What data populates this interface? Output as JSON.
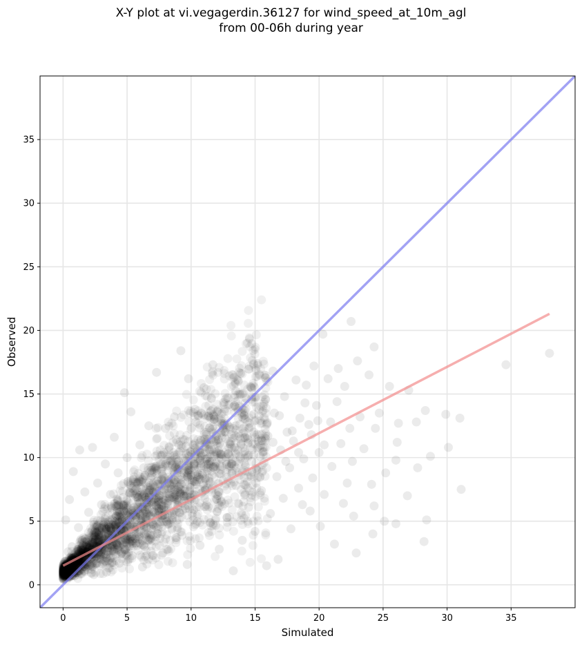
{
  "chart_data": {
    "type": "scatter",
    "title": "X-Y plot at vi.vegagerdin.36127 for wind_speed_at_10m_agl\nfrom 00-06h during year",
    "xlabel": "Simulated",
    "ylabel": "Observed",
    "xlim": [
      -1.8,
      40.0
    ],
    "ylim": [
      -1.8,
      40.0
    ],
    "xticks": [
      0,
      5,
      10,
      15,
      20,
      25,
      30,
      35
    ],
    "yticks": [
      0,
      5,
      10,
      15,
      20,
      25,
      30,
      35
    ],
    "grid": true,
    "colors": {
      "points": "#000000",
      "identity_line": "#7b7bf0",
      "fit_line": "#f28b8b"
    },
    "reference_lines": [
      {
        "kind": "identity",
        "x": [
          -1.8,
          40.0
        ],
        "y": [
          -1.8,
          40.0
        ]
      },
      {
        "kind": "fit",
        "x": [
          0.0,
          38.0
        ],
        "y": [
          1.5,
          21.3
        ]
      }
    ],
    "points": [
      [
        34.6,
        17.3
      ],
      [
        38.0,
        18.2
      ],
      [
        31.1,
        7.5
      ],
      [
        31.0,
        13.1
      ],
      [
        30.1,
        10.8
      ],
      [
        29.9,
        13.4
      ],
      [
        28.7,
        10.1
      ],
      [
        28.4,
        5.1
      ],
      [
        28.2,
        3.4
      ],
      [
        28.3,
        13.7
      ],
      [
        27.6,
        12.8
      ],
      [
        27.7,
        9.2
      ],
      [
        26.9,
        7.0
      ],
      [
        27.0,
        15.3
      ],
      [
        26.1,
        11.2
      ],
      [
        26.0,
        9.8
      ],
      [
        26.0,
        4.8
      ],
      [
        26.2,
        12.7
      ],
      [
        25.5,
        15.6
      ],
      [
        25.2,
        8.8
      ],
      [
        25.1,
        5.0
      ],
      [
        24.7,
        13.5
      ],
      [
        24.4,
        12.3
      ],
      [
        24.3,
        6.2
      ],
      [
        24.2,
        4.0
      ],
      [
        24.1,
        7.9
      ],
      [
        24.3,
        18.7
      ],
      [
        23.9,
        16.5
      ],
      [
        23.5,
        10.7
      ],
      [
        23.2,
        13.2
      ],
      [
        23.0,
        17.6
      ],
      [
        22.9,
        2.5
      ],
      [
        22.7,
        5.4
      ],
      [
        22.6,
        9.7
      ],
      [
        22.5,
        20.7
      ],
      [
        22.4,
        12.3
      ],
      [
        22.2,
        8.0
      ],
      [
        22.0,
        15.6
      ],
      [
        21.9,
        6.4
      ],
      [
        21.7,
        11.1
      ],
      [
        21.5,
        17.0
      ],
      [
        21.4,
        14.4
      ],
      [
        21.2,
        3.2
      ],
      [
        21.0,
        9.3
      ],
      [
        20.9,
        12.8
      ],
      [
        20.7,
        16.2
      ],
      [
        20.4,
        7.1
      ],
      [
        20.3,
        19.7
      ],
      [
        20.1,
        4.6
      ],
      [
        20.0,
        10.4
      ],
      [
        19.8,
        14.1
      ],
      [
        19.6,
        17.2
      ],
      [
        19.5,
        8.4
      ],
      [
        19.3,
        5.8
      ],
      [
        19.2,
        12.6
      ],
      [
        19.0,
        15.7
      ],
      [
        18.8,
        9.9
      ],
      [
        18.7,
        6.3
      ],
      [
        18.5,
        13.1
      ],
      [
        18.4,
        7.6
      ],
      [
        18.2,
        16.1
      ],
      [
        18.0,
        11.3
      ],
      [
        17.8,
        4.4
      ],
      [
        17.7,
        9.2
      ],
      [
        17.5,
        12.0
      ],
      [
        17.3,
        14.8
      ],
      [
        17.2,
        6.8
      ],
      [
        17.0,
        10.6
      ],
      [
        16.8,
        2.0
      ],
      [
        16.7,
        8.5
      ],
      [
        16.5,
        13.5
      ],
      [
        16.4,
        16.8
      ],
      [
        16.2,
        5.6
      ],
      [
        16.0,
        11.7
      ],
      [
        15.9,
        1.5
      ],
      [
        15.7,
        9.6
      ],
      [
        15.5,
        7.4
      ],
      [
        15.4,
        12.9
      ],
      [
        15.2,
        17.4
      ],
      [
        15.0,
        4.2
      ],
      [
        14.9,
        10.2
      ],
      [
        14.7,
        15.5
      ],
      [
        14.5,
        6.1
      ],
      [
        14.4,
        8.9
      ],
      [
        14.2,
        13.7
      ],
      [
        14.0,
        3.5
      ],
      [
        13.9,
        11.1
      ],
      [
        13.7,
        16.0
      ],
      [
        13.5,
        7.8
      ],
      [
        13.3,
        1.1
      ],
      [
        13.2,
        9.5
      ],
      [
        13.0,
        12.4
      ],
      [
        12.8,
        5.3
      ],
      [
        12.7,
        14.6
      ],
      [
        12.5,
        8.2
      ],
      [
        12.3,
        10.9
      ],
      [
        12.2,
        2.8
      ],
      [
        12.0,
        6.7
      ],
      [
        11.8,
        13.0
      ],
      [
        11.7,
        17.3
      ],
      [
        11.5,
        4.9
      ],
      [
        11.3,
        9.0
      ],
      [
        11.2,
        11.8
      ],
      [
        11.0,
        15.5
      ],
      [
        10.8,
        7.2
      ],
      [
        10.7,
        3.1
      ],
      [
        10.5,
        10.5
      ],
      [
        10.3,
        13.8
      ],
      [
        10.2,
        5.9
      ],
      [
        10.0,
        8.6
      ],
      [
        9.8,
        16.2
      ],
      [
        9.7,
        1.6
      ],
      [
        9.5,
        11.4
      ],
      [
        9.3,
        6.4
      ],
      [
        9.2,
        18.4
      ],
      [
        9.0,
        9.7
      ],
      [
        8.8,
        3.7
      ],
      [
        8.7,
        13.2
      ],
      [
        8.5,
        7.5
      ],
      [
        8.3,
        10.8
      ],
      [
        8.2,
        4.8
      ],
      [
        8.0,
        12.3
      ],
      [
        7.8,
        2.5
      ],
      [
        7.7,
        8.9
      ],
      [
        7.5,
        6.0
      ],
      [
        7.3,
        16.7
      ],
      [
        7.2,
        10.1
      ],
      [
        7.0,
        3.9
      ],
      [
        6.8,
        7.8
      ],
      [
        6.7,
        12.5
      ],
      [
        6.5,
        5.1
      ],
      [
        6.3,
        9.2
      ],
      [
        6.2,
        1.4
      ],
      [
        6.0,
        11.0
      ],
      [
        5.8,
        6.9
      ],
      [
        5.7,
        3.3
      ],
      [
        5.5,
        8.3
      ],
      [
        5.3,
        13.6
      ],
      [
        5.2,
        4.6
      ],
      [
        5.0,
        10.0
      ],
      [
        4.8,
        15.1
      ],
      [
        4.7,
        6.2
      ],
      [
        4.5,
        2.4
      ],
      [
        4.3,
        8.8
      ],
      [
        4.2,
        5.4
      ],
      [
        4.0,
        11.6
      ],
      [
        3.8,
        3.8
      ],
      [
        3.7,
        7.1
      ],
      [
        3.5,
        1.9
      ],
      [
        3.3,
        9.5
      ],
      [
        3.2,
        4.9
      ],
      [
        3.0,
        6.3
      ],
      [
        2.8,
        2.9
      ],
      [
        2.7,
        8.0
      ],
      [
        2.5,
        4.2
      ],
      [
        2.3,
        10.8
      ],
      [
        2.2,
        1.6
      ],
      [
        2.0,
        5.7
      ],
      [
        1.8,
        3.4
      ],
      [
        1.7,
        7.3
      ],
      [
        1.5,
        2.2
      ],
      [
        1.3,
        10.6
      ],
      [
        1.2,
        4.5
      ],
      [
        1.0,
        1.3
      ],
      [
        0.8,
        8.9
      ],
      [
        0.7,
        3.0
      ],
      [
        0.5,
        6.7
      ],
      [
        0.3,
        1.1
      ],
      [
        0.2,
        5.1
      ],
      [
        0.4,
        2.6
      ],
      [
        0.9,
        0.7
      ],
      [
        1.4,
        0.9
      ],
      [
        1.9,
        1.2
      ],
      [
        2.4,
        0.8
      ],
      [
        2.9,
        1.5
      ],
      [
        3.4,
        1.0
      ],
      [
        3.9,
        2.1
      ],
      [
        4.4,
        1.7
      ],
      [
        4.9,
        2.8
      ],
      [
        5.4,
        2.3
      ],
      [
        5.9,
        3.6
      ],
      [
        6.4,
        3.0
      ],
      [
        6.9,
        4.4
      ],
      [
        7.4,
        4.0
      ],
      [
        7.9,
        5.5
      ],
      [
        8.4,
        5.8
      ],
      [
        8.9,
        6.5
      ],
      [
        9.4,
        7.0
      ],
      [
        9.9,
        7.4
      ],
      [
        10.4,
        8.1
      ],
      [
        10.9,
        8.6
      ],
      [
        11.4,
        8.4
      ],
      [
        11.9,
        9.3
      ],
      [
        12.4,
        9.9
      ],
      [
        12.9,
        10.3
      ],
      [
        13.4,
        10.8
      ],
      [
        13.9,
        11.0
      ],
      [
        14.4,
        11.5
      ],
      [
        14.9,
        12.0
      ],
      [
        15.4,
        10.1
      ],
      [
        15.9,
        12.6
      ],
      [
        16.4,
        11.2
      ],
      [
        16.9,
        13.3
      ],
      [
        17.4,
        9.7
      ],
      [
        17.9,
        12.1
      ],
      [
        18.4,
        10.4
      ],
      [
        18.9,
        14.3
      ],
      [
        19.4,
        11.8
      ],
      [
        19.9,
        12.9
      ],
      [
        20.4,
        11.0
      ]
    ]
  }
}
